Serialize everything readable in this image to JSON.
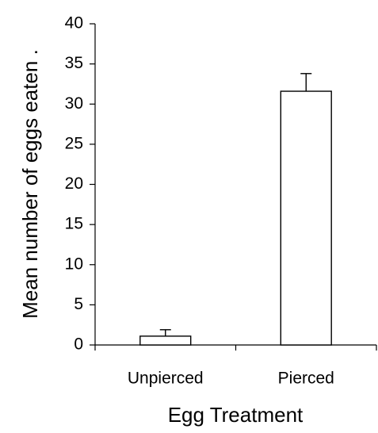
{
  "chart_data": {
    "type": "bar",
    "x_label": "Egg Treatment",
    "y_label": "Mean number of eggs eaten .",
    "categories": [
      "Unpierced",
      "Pierced"
    ],
    "values": [
      1.1,
      31.6
    ],
    "errors": [
      0.8,
      2.2
    ],
    "color": "#ffffff",
    "ylim": [
      0,
      40
    ],
    "yticks": [
      0,
      5,
      10,
      15,
      20,
      25,
      30,
      35,
      40
    ],
    "grid": false
  }
}
